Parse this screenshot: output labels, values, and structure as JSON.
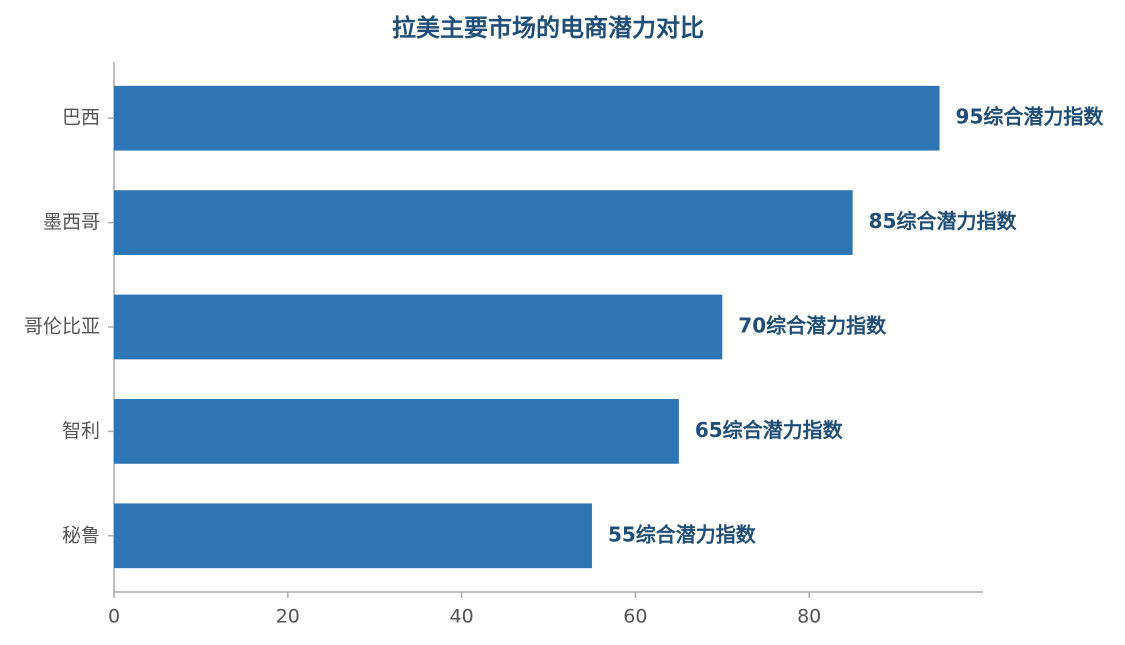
{
  "chart_data": {
    "type": "bar",
    "orientation": "horizontal",
    "title": "拉美主要市场的电商潜力对比",
    "categories": [
      "巴西",
      "墨西哥",
      "哥伦比亚",
      "智利",
      "秘鲁"
    ],
    "values": [
      95,
      85,
      70,
      65,
      55
    ],
    "value_labels": [
      "95综合潜力指数",
      "85综合潜力指数",
      "70综合潜力指数",
      "65综合潜力指数",
      "55综合潜力指数"
    ],
    "color": "#2e75b6",
    "xlim": [
      0,
      100
    ],
    "xticks": [
      0,
      20,
      40,
      60,
      80
    ],
    "grid": false
  }
}
